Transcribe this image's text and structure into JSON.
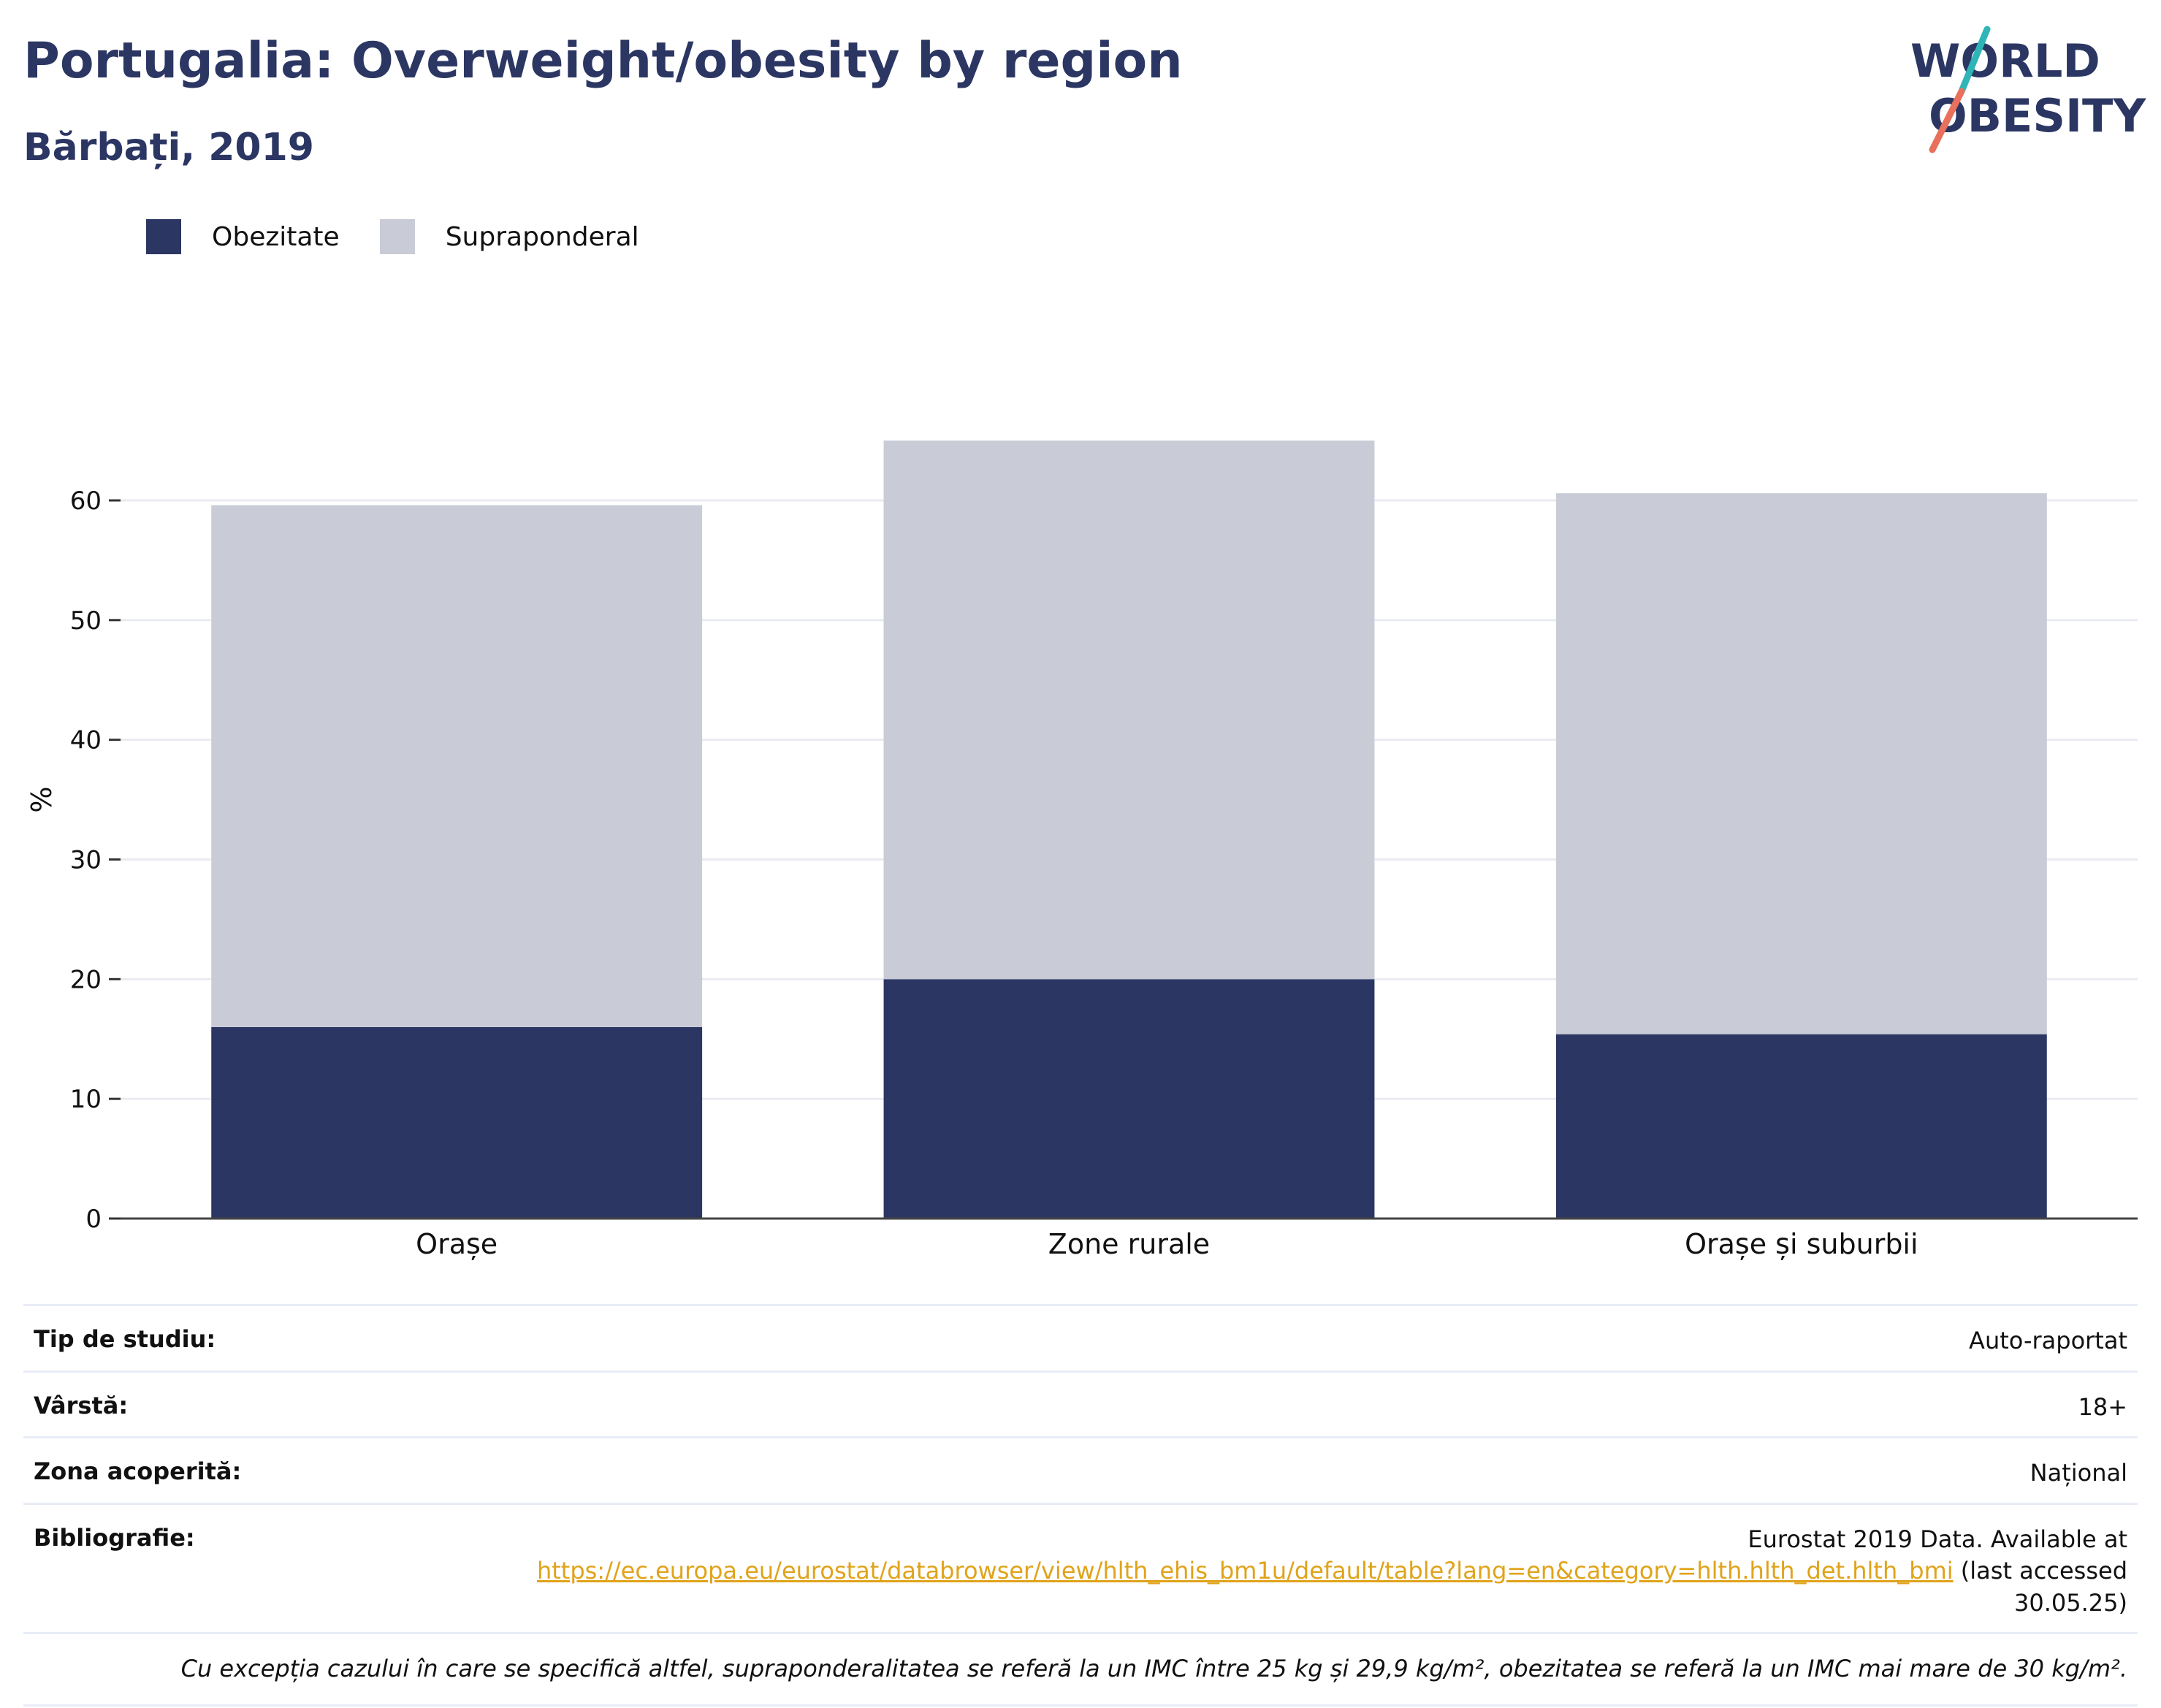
{
  "title": "Portugalia: Overweight/obesity by region",
  "subtitle": "Bărbați, 2019",
  "logo": {
    "line1": "WORLD",
    "line2": "OBESITY"
  },
  "legend": [
    {
      "label": "Obezitate",
      "color": "#2b3663"
    },
    {
      "label": "Supraponderal",
      "color": "#c9ccd7"
    }
  ],
  "chart_data": {
    "type": "bar",
    "stacked": true,
    "categories": [
      "Orașe",
      "Zone rurale",
      "Orașe și suburbii"
    ],
    "series": [
      {
        "name": "Obezitate",
        "values": [
          16.0,
          20.0,
          15.4
        ],
        "color": "#2b3663"
      },
      {
        "name": "Supraponderal",
        "values": [
          43.6,
          45.0,
          45.2
        ],
        "color": "#c9ccd7"
      }
    ],
    "totals": [
      59.6,
      65.0,
      60.6
    ],
    "ylabel": "%",
    "xlabel": "",
    "ylim": [
      0,
      70
    ],
    "yticks": [
      0,
      10,
      20,
      30,
      40,
      50,
      60
    ],
    "grid": true,
    "legend_position": "top-left"
  },
  "info": {
    "study_type": {
      "label": "Tip de studiu:",
      "value": "Auto-raportat"
    },
    "age": {
      "label": "Vârstă:",
      "value": "18+"
    },
    "coverage": {
      "label": "Zona acoperită:",
      "value": "Național"
    },
    "bibliography": {
      "label": "Bibliografie:",
      "prefix": "Eurostat 2019 Data. Available at",
      "link": "https://ec.europa.eu/eurostat/databrowser/view/hlth_ehis_bm1u/default/table?lang=en&category=hlth.hlth_det.hlth_bmi",
      "suffix": "(last accessed 30.05.25)"
    },
    "note": "Cu excepția cazului în care se specifică altfel, supraponderalitatea se referă la un IMC între 25 kg și 29,9 kg/m², obezitatea se referă la un IMC mai mare de 30 kg/m²."
  }
}
